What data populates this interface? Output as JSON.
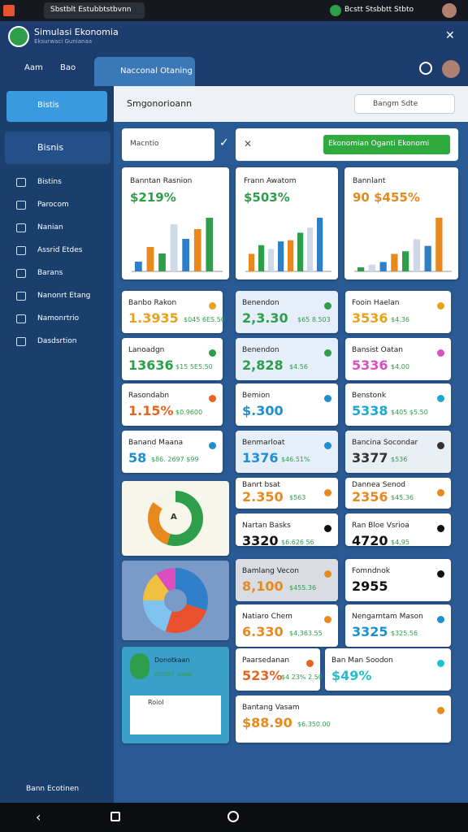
{
  "status": {
    "tab": "Sbstblt Estubbtstbvnn",
    "right": "Bcstt Stsbbtt Stbto"
  },
  "header": {
    "title": "Simulasi Ekonomia",
    "subtitle": "Eksurwaci Gunianaa"
  },
  "tabs": [
    "Aam",
    "Bao",
    "Nacconal Otaning"
  ],
  "sidebar": {
    "active": "Bistis",
    "section": "Bisnis",
    "items": [
      "Bistins",
      "Parocom",
      "Nanian",
      "Assrid Etdes",
      "Barans",
      "Nanonrt Etang",
      "Namonrtrio",
      "Dasdsrtion"
    ],
    "footer": "Bann Ecotinen"
  },
  "topbar": {
    "title": "Smgonorioann",
    "search": "Bangm Sdte"
  },
  "toolbar": {
    "input": "Macntio",
    "button": "Ekonomian Oganti Ekonomi"
  },
  "charts": [
    {
      "title": "Banntan Rasnion",
      "value": "$219%",
      "color": "#2e9e4a",
      "values": [
        12,
        30,
        22,
        58,
        40,
        52,
        66
      ]
    },
    {
      "title": "Frann Awatom",
      "value": "$503%",
      "color": "#2e9e4a",
      "values": [
        28,
        42,
        36,
        48,
        50,
        62,
        70,
        86
      ]
    },
    {
      "title": "Bannlant",
      "value": "90 $455%",
      "color": "#e8891e",
      "values": [
        6,
        10,
        14,
        26,
        30,
        48,
        38,
        80
      ]
    }
  ],
  "cards": {
    "left": [
      {
        "label": "Banbo Rakon",
        "value": "1.3935",
        "sub": "$045 6ES.50",
        "color": "#e8a21e"
      },
      {
        "label": "Lanoadgn",
        "value": "13636",
        "sub": "$15 5E5.50",
        "color": "#2e9e4a"
      },
      {
        "label": "Rasondabn",
        "value": "1.15%",
        "sub": "$0.9600",
        "color": "#e8641e"
      },
      {
        "label": "Banand Maana",
        "value": "58",
        "sub": "$86. 2697 $99",
        "color": "#1e8fd0"
      }
    ],
    "middle": [
      {
        "label": "Benendon",
        "value": "2,3.30",
        "sub": "$65 8.503",
        "color": "#2e9e4a"
      },
      {
        "label": "Benendon",
        "value": "2,828",
        "sub": "$4.56",
        "color": "#2e9e4a"
      },
      {
        "label": "Bemion",
        "value": "$.300",
        "sub": "",
        "color": "#1e8fd0"
      },
      {
        "label": "Benmarloat",
        "value": "1376",
        "sub": "$46.51%",
        "color": "#1e8fd0"
      },
      {
        "label": "Banrt bsat",
        "value": "2.350",
        "sub": "$563",
        "color": "#e8891e"
      },
      {
        "label": "Nartan Basks",
        "value": "3320",
        "sub": "$6.626 56",
        "color": "#111111"
      },
      {
        "label": "Bamlang Vecon",
        "value": "8,100",
        "sub": "$455.36",
        "color": "#e8891e"
      },
      {
        "label": "Natiaro Chem",
        "value": "6.330",
        "sub": "$4,363.55",
        "color": "#e8891e"
      },
      {
        "label": "Paarsedanan",
        "value": "523%",
        "sub": "$4 23% 2.50",
        "color": "#e8641e"
      },
      {
        "label": "Bantang Vasam",
        "value": "$88.90",
        "sub": "$6.350.00",
        "color": "#e8891e"
      }
    ],
    "right": [
      {
        "label": "Fooin Haelan",
        "value": "3536",
        "sub": "$4.36",
        "color": "#e8a21e"
      },
      {
        "label": "Bansist Oatan",
        "value": "5336",
        "sub": "$4.00",
        "color": "#d94fc0"
      },
      {
        "label": "Benstonk",
        "value": "5338",
        "sub": "$405 $5.50",
        "color": "#1ea8d0"
      },
      {
        "label": "Bancina Socondar",
        "value": "3377",
        "sub": "$536",
        "color": "#333333"
      },
      {
        "label": "Dannea Senod",
        "value": "2356",
        "sub": "$45.36",
        "color": "#e8891e"
      },
      {
        "label": "Ran Bloe Vsrioa",
        "value": "4720",
        "sub": "$4.95",
        "color": "#111111"
      },
      {
        "label": "Fomndnok",
        "value": "2955",
        "sub": "",
        "color": "#111111"
      },
      {
        "label": "Nengamtam Mason",
        "value": "3325",
        "sub": "$325.56",
        "color": "#1e8fd0"
      },
      {
        "label": "Ban Man Soodon",
        "value": "$49%",
        "sub": "",
        "color": "#1ec0d0"
      }
    ]
  },
  "donut": {
    "values": [
      55,
      30,
      15
    ],
    "colors": [
      "#2e9e4a",
      "#e8891e",
      "#f4f4e8"
    ],
    "center": "A"
  },
  "pie": {
    "values": [
      30,
      25,
      20,
      15,
      10
    ],
    "colors": [
      "#2f7fc8",
      "#e8502e",
      "#7fc4f0",
      "#f0c040",
      "#d94fc0"
    ]
  },
  "green_card": {
    "title": "Donotkaan",
    "sub": "ROUSY .aaaa",
    "item": "Roiol"
  }
}
